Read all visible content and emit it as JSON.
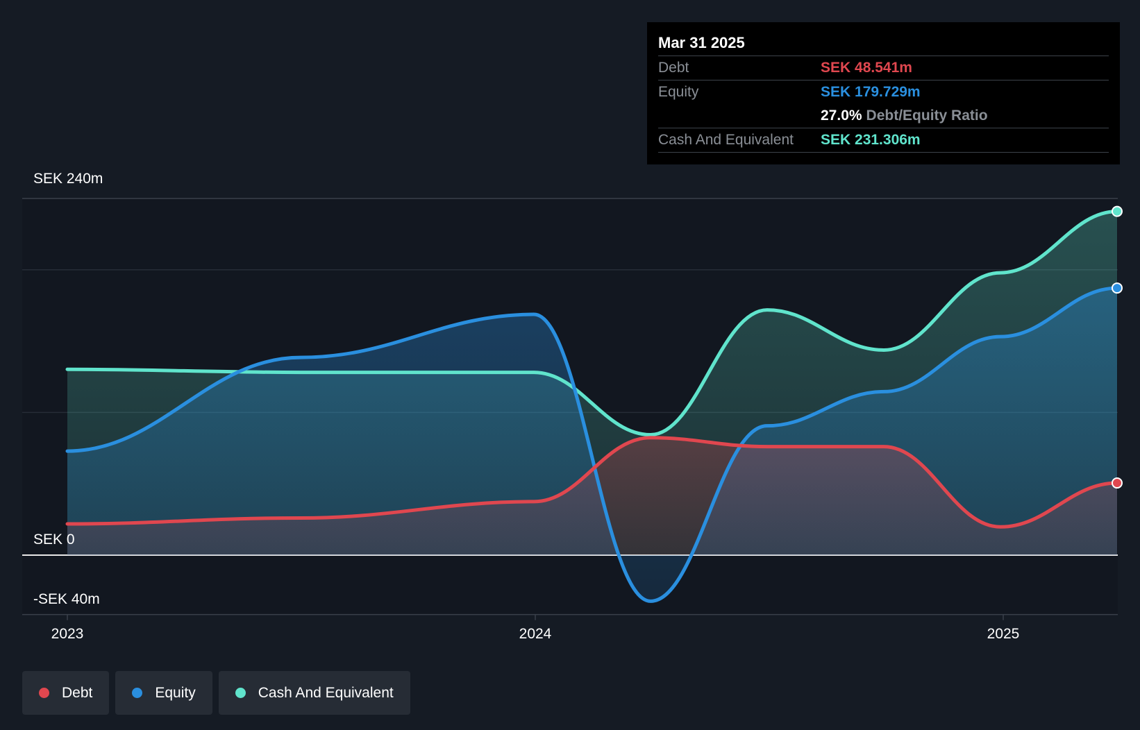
{
  "chart_data": {
    "type": "area",
    "y_axis": {
      "tick_labels": [
        "SEK 240m",
        "SEK 0",
        "-SEK 40m"
      ],
      "ylim": [
        -40,
        240
      ],
      "unit": "SEK m"
    },
    "x_axis": {
      "tick_labels": [
        "2023",
        "2024",
        "2025"
      ],
      "ticks": [
        2023.0,
        2024.0,
        2025.0
      ],
      "xlim": [
        2023.0,
        2025.25
      ]
    },
    "series": [
      {
        "name": "Debt",
        "color": "#e0474f",
        "points": [
          [
            2023.0,
            21
          ],
          [
            2023.5,
            25
          ],
          [
            2024.0,
            36
          ],
          [
            2024.25,
            79
          ],
          [
            2024.5,
            73
          ],
          [
            2024.75,
            73
          ],
          [
            2025.0,
            19
          ],
          [
            2025.25,
            48.541
          ]
        ]
      },
      {
        "name": "Equity",
        "color": "#2a8fdf",
        "points": [
          [
            2023.0,
            70
          ],
          [
            2023.5,
            133
          ],
          [
            2024.0,
            162
          ],
          [
            2024.25,
            -31
          ],
          [
            2024.5,
            87
          ],
          [
            2024.75,
            110
          ],
          [
            2025.0,
            147
          ],
          [
            2025.25,
            179.729
          ]
        ]
      },
      {
        "name": "Cash And Equivalent",
        "color": "#60e4cc",
        "points": [
          [
            2023.0,
            125
          ],
          [
            2023.5,
            123
          ],
          [
            2024.0,
            123
          ],
          [
            2024.25,
            81
          ],
          [
            2024.5,
            165
          ],
          [
            2024.75,
            138
          ],
          [
            2025.0,
            190
          ],
          [
            2025.25,
            231.306
          ]
        ]
      }
    ],
    "grid": true,
    "legend_position": "bottom-left"
  },
  "tooltip": {
    "date": "Mar 31 2025",
    "debt_label": "Debt",
    "debt_value": "SEK 48.541m",
    "equity_label": "Equity",
    "equity_value": "SEK 179.729m",
    "ratio_value": "27.0%",
    "ratio_label": "Debt/Equity Ratio",
    "cash_label": "Cash And Equivalent",
    "cash_value": "SEK 231.306m"
  },
  "legend": [
    {
      "label": "Debt",
      "color": "#e0474f"
    },
    {
      "label": "Equity",
      "color": "#2a8fdf"
    },
    {
      "label": "Cash And Equivalent",
      "color": "#60e4cc"
    }
  ]
}
